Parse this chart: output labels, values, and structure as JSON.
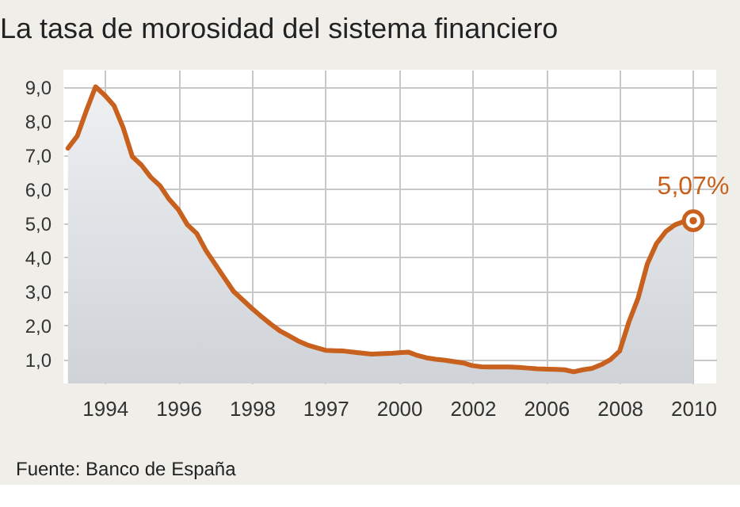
{
  "chart_data": {
    "type": "area",
    "title": "La tasa de morosidad del sistema financiero",
    "categories": [
      null,
      null,
      null,
      null,
      "1994",
      null,
      null,
      null,
      null,
      null,
      null,
      null,
      "1996",
      null,
      null,
      null,
      null,
      null,
      null,
      null,
      "1998",
      null,
      null,
      null,
      null,
      null,
      null,
      null,
      "1997",
      null,
      null,
      null,
      null,
      null,
      null,
      null,
      "2000",
      null,
      null,
      null,
      null,
      null,
      null,
      null,
      "2002",
      null,
      null,
      null,
      null,
      null,
      null,
      null,
      "2006",
      null,
      null,
      null,
      null,
      null,
      null,
      null,
      "2008",
      null,
      null,
      null,
      null,
      null,
      null,
      null,
      "2010"
    ],
    "series": [
      {
        "color": "#c8611e",
        "values": [
          7.2,
          7.55,
          8.3,
          9.0,
          8.75,
          8.45,
          7.8,
          6.95,
          6.7,
          6.35,
          6.1,
          5.7,
          5.4,
          4.95,
          4.7,
          4.2,
          3.8,
          3.4,
          3.0,
          2.75,
          2.5,
          2.27,
          2.05,
          1.85,
          1.7,
          1.55,
          1.43,
          1.35,
          1.27,
          1.26,
          1.25,
          1.22,
          1.19,
          1.16,
          1.17,
          1.18,
          1.2,
          1.22,
          1.12,
          1.05,
          1.01,
          0.98,
          0.94,
          0.9,
          0.82,
          0.79,
          0.78,
          0.78,
          0.78,
          0.77,
          0.75,
          0.73,
          0.72,
          0.71,
          0.7,
          0.64,
          0.7,
          0.74,
          0.85,
          1.0,
          1.25,
          2.1,
          2.8,
          3.8,
          4.4,
          4.75,
          4.95,
          5.05,
          5.07
        ]
      }
    ],
    "ylim": [
      0.3,
      9.5
    ],
    "yticks": [
      {
        "value": 1,
        "label": "1,0"
      },
      {
        "value": 2,
        "label": "2,0"
      },
      {
        "value": 3,
        "label": "3,0"
      },
      {
        "value": 4,
        "label": "4,0"
      },
      {
        "value": 5,
        "label": "5,0"
      },
      {
        "value": 6,
        "label": "6,0"
      },
      {
        "value": 7,
        "label": "7,0"
      },
      {
        "value": 8,
        "label": "8,0"
      },
      {
        "value": 9,
        "label": "9,0"
      }
    ],
    "grid": true,
    "annotations": [
      {
        "text": "5,07%",
        "x": "2010",
        "y": 5.07
      },
      "Fuente: Banco de España"
    ]
  }
}
